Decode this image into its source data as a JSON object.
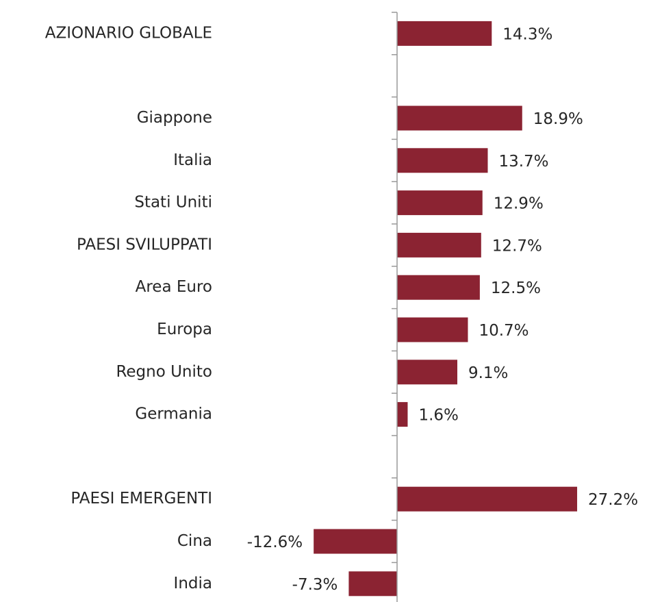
{
  "chart_data": {
    "type": "hbar",
    "categories": [
      "AZIONARIO GLOBALE",
      null,
      "Giappone",
      "Italia",
      "Stati Uniti",
      "PAESI SVILUPPATI",
      "Area Euro",
      "Europa",
      "Regno Unito",
      "Germania",
      null,
      "PAESI EMERGENTI",
      "Cina",
      "India"
    ],
    "values": [
      14.3,
      null,
      18.9,
      13.7,
      12.9,
      12.7,
      12.5,
      10.7,
      9.1,
      1.6,
      null,
      27.2,
      -12.6,
      -7.3
    ],
    "value_labels": [
      "14.3%",
      null,
      "18.9%",
      "13.7%",
      "12.9%",
      "12.7%",
      "12.5%",
      "10.7%",
      "9.1%",
      "1.6%",
      null,
      "27.2%",
      "-12.6%",
      "-7.3%"
    ],
    "color": "#8b2332"
  }
}
